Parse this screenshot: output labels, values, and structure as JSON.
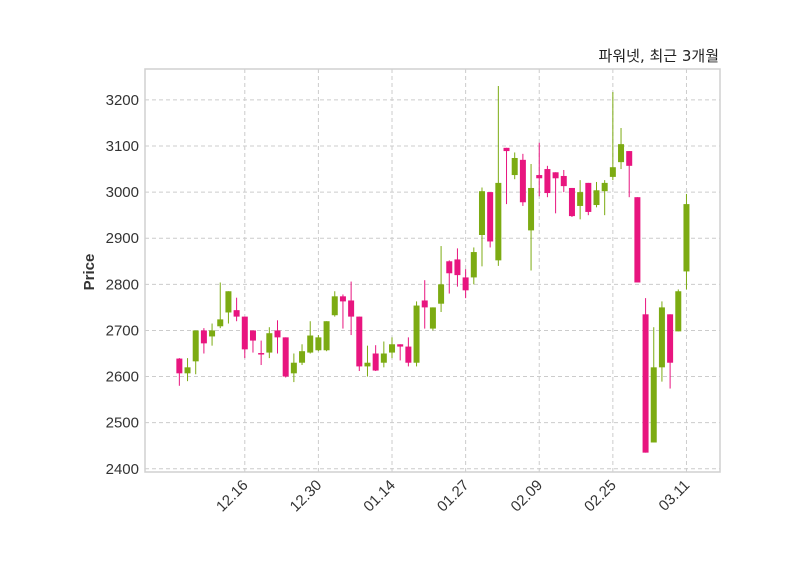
{
  "chart_data": {
    "type": "candlestick",
    "title": "파워넷, 최근 3개월",
    "xlabel": "",
    "ylabel": "Price",
    "ylim": [
      2393,
      3267
    ],
    "yticks": [
      2400,
      2500,
      2600,
      2700,
      2800,
      2900,
      3000,
      3100,
      3200
    ],
    "xlim_index": [
      -4.2,
      66.1
    ],
    "xtick_labels": [
      {
        "index": 8,
        "label": "12.16"
      },
      {
        "index": 17,
        "label": "12.30"
      },
      {
        "index": 26,
        "label": "01.14"
      },
      {
        "index": 35,
        "label": "01.27"
      },
      {
        "index": 44,
        "label": "02.09"
      },
      {
        "index": 53,
        "label": "02.25"
      },
      {
        "index": 62,
        "label": "03.11"
      }
    ],
    "grid": true,
    "colors": {
      "up": "#7cab12",
      "down": "#e8157f",
      "grid": "#cccccc",
      "frame": "#d0d0d0"
    },
    "ohlc": [
      [
        2639,
        2640,
        2580,
        2607
      ],
      [
        2607,
        2640,
        2590,
        2620
      ],
      [
        2633,
        2700,
        2605,
        2700
      ],
      [
        2700,
        2705,
        2650,
        2672
      ],
      [
        2687,
        2715,
        2667,
        2700
      ],
      [
        2709,
        2804,
        2705,
        2724
      ],
      [
        2739,
        2785,
        2715,
        2785
      ],
      [
        2744,
        2771,
        2720,
        2730
      ],
      [
        2730,
        2730,
        2640,
        2659
      ],
      [
        2700,
        2700,
        2652,
        2678
      ],
      [
        2651,
        2678,
        2625,
        2650
      ],
      [
        2652,
        2707,
        2640,
        2694
      ],
      [
        2700,
        2722,
        2650,
        2685
      ],
      [
        2685,
        2685,
        2598,
        2600
      ],
      [
        2607,
        2650,
        2588,
        2630
      ],
      [
        2630,
        2670,
        2625,
        2655
      ],
      [
        2652,
        2720,
        2650,
        2689
      ],
      [
        2657,
        2690,
        2655,
        2685
      ],
      [
        2657,
        2720,
        2655,
        2720
      ],
      [
        2733,
        2785,
        2730,
        2774
      ],
      [
        2774,
        2778,
        2704,
        2763
      ],
      [
        2765,
        2806,
        2690,
        2730
      ],
      [
        2730,
        2730,
        2612,
        2622
      ],
      [
        2622,
        2667,
        2600,
        2630
      ],
      [
        2650,
        2668,
        2612,
        2613
      ],
      [
        2630,
        2676,
        2620,
        2650
      ],
      [
        2652,
        2685,
        2640,
        2670
      ],
      [
        2670,
        2670,
        2635,
        2665
      ],
      [
        2665,
        2685,
        2622,
        2630
      ],
      [
        2630,
        2763,
        2622,
        2754
      ],
      [
        2765,
        2809,
        2704,
        2750
      ],
      [
        2704,
        2750,
        2700,
        2750
      ],
      [
        2758,
        2883,
        2740,
        2800
      ],
      [
        2850,
        2852,
        2780,
        2824
      ],
      [
        2854,
        2878,
        2795,
        2820
      ],
      [
        2815,
        2833,
        2770,
        2787
      ],
      [
        2815,
        2880,
        2800,
        2870
      ],
      [
        2907,
        3010,
        2839,
        3002
      ],
      [
        3000,
        3000,
        2880,
        2893
      ],
      [
        2852,
        3230,
        2840,
        3020
      ],
      [
        3096,
        3096,
        2974,
        3089
      ],
      [
        3037,
        3086,
        3028,
        3074
      ],
      [
        3070,
        3083,
        2970,
        2978
      ],
      [
        2917,
        3061,
        2830,
        3009
      ],
      [
        3037,
        3107,
        2991,
        3030
      ],
      [
        3050,
        3057,
        2989,
        2998
      ],
      [
        3043,
        3043,
        2954,
        3030
      ],
      [
        3035,
        3048,
        3000,
        3013
      ],
      [
        3009,
        3009,
        2946,
        2948
      ],
      [
        2970,
        3026,
        2941,
        3000
      ],
      [
        3020,
        3020,
        2950,
        2957
      ],
      [
        2972,
        3022,
        2967,
        3004
      ],
      [
        3002,
        3026,
        2950,
        3020
      ],
      [
        3033,
        3217,
        3026,
        3054
      ],
      [
        3065,
        3139,
        3050,
        3104
      ],
      [
        3089,
        3089,
        2989,
        3057
      ],
      [
        2989,
        2989,
        2804,
        2804
      ],
      [
        2735,
        2770,
        2435,
        2435
      ],
      [
        2457,
        2707,
        2457,
        2620
      ],
      [
        2620,
        2763,
        2589,
        2750
      ],
      [
        2735,
        2735,
        2574,
        2630
      ],
      [
        2698,
        2789,
        2698,
        2785
      ],
      [
        2828,
        2996,
        2789,
        2974
      ]
    ]
  }
}
